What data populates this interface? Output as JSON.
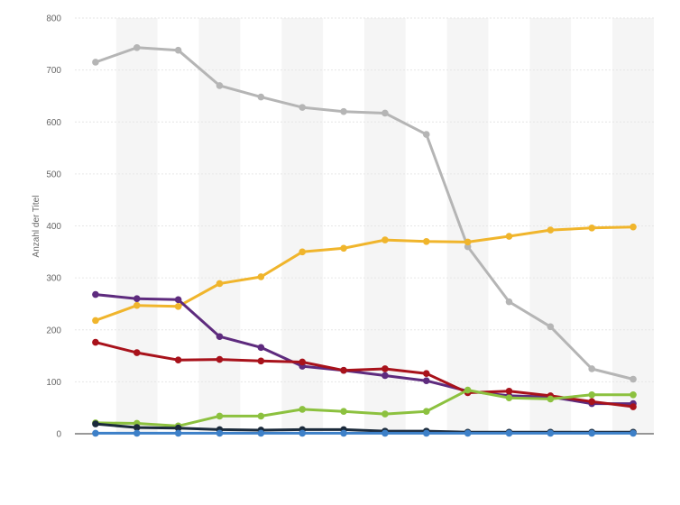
{
  "chart_data": {
    "type": "line",
    "ylabel": "Anzahl der Titel",
    "ylim": [
      0,
      800
    ],
    "yticks": [
      0,
      100,
      200,
      300,
      400,
      500,
      600,
      700,
      800
    ],
    "ytick_labels": [
      "0",
      "100",
      "200",
      "300",
      "400",
      "500",
      "600",
      "700",
      "800"
    ],
    "x": [
      1,
      2,
      3,
      4,
      5,
      6,
      7,
      8,
      9,
      10,
      11,
      12,
      13,
      14
    ],
    "grid": true,
    "background_bands": [
      "#ffffff",
      "#f5f5f5"
    ],
    "series": [
      {
        "color": "#b5b5b5",
        "values": [
          715,
          743,
          738,
          670,
          648,
          628,
          620,
          617,
          576,
          360,
          254,
          206,
          125,
          105
        ]
      },
      {
        "color": "#f0b52c",
        "values": [
          218,
          247,
          245,
          289,
          302,
          350,
          357,
          373,
          370,
          369,
          380,
          392,
          396,
          398
        ]
      },
      {
        "color": "#5e2b7e",
        "values": [
          268,
          260,
          258,
          187,
          166,
          130,
          122,
          112,
          102,
          82,
          73,
          71,
          58,
          58
        ]
      },
      {
        "color": "#a8121b",
        "values": [
          176,
          156,
          142,
          143,
          140,
          138,
          122,
          125,
          116,
          79,
          82,
          73,
          62,
          52
        ]
      },
      {
        "color": "#8cc13f",
        "values": [
          21,
          20,
          15,
          34,
          34,
          47,
          43,
          38,
          43,
          84,
          69,
          67,
          75,
          75
        ]
      },
      {
        "color": "#1b2a3b",
        "values": [
          19,
          12,
          11,
          8,
          7,
          8,
          8,
          5,
          5,
          3,
          3,
          3,
          3,
          3
        ]
      },
      {
        "color": "#3d80c8",
        "values": [
          1,
          1,
          1,
          1,
          1,
          1,
          1,
          1,
          1,
          1,
          1,
          1,
          1,
          1
        ]
      }
    ]
  }
}
